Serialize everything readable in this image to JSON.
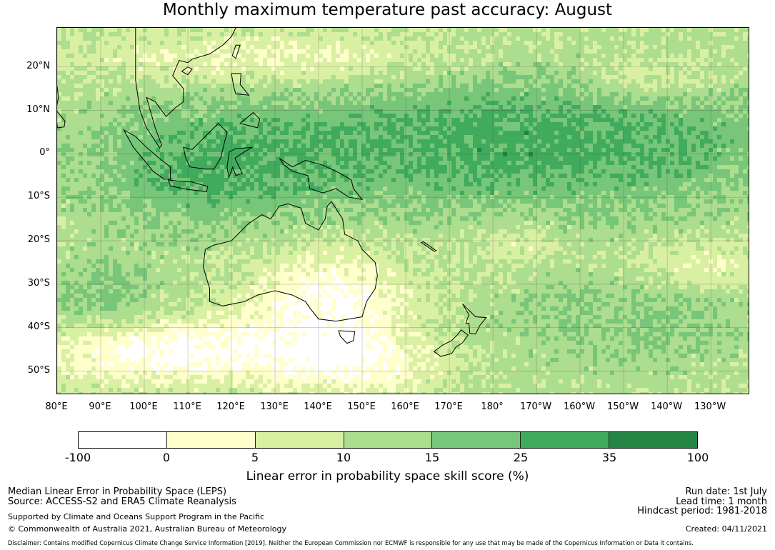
{
  "title": "Monthly maximum temperature past accuracy: August",
  "map": {
    "lat_labels": [
      "20°N",
      "10°N",
      "0°",
      "10°S",
      "20°S",
      "30°S",
      "40°S",
      "50°S"
    ],
    "lon_labels": [
      "80°E",
      "90°E",
      "100°E",
      "110°E",
      "120°E",
      "130°E",
      "140°E",
      "150°E",
      "160°E",
      "170°E",
      "180°",
      "170°W",
      "160°W",
      "150°W",
      "140°W",
      "130°W"
    ],
    "extent": {
      "lon_min": 80,
      "lon_max": 239,
      "lat_min": -55.5,
      "lat_max": 29
    },
    "field": "LEPS skill score (%)"
  },
  "colorbar": {
    "ticks": [
      "-100",
      "0",
      "5",
      "10",
      "15",
      "25",
      "35",
      "100"
    ],
    "colors": [
      "#ffffff",
      "#ffffcc",
      "#d9f0a3",
      "#addd8e",
      "#78c679",
      "#41ab5d",
      "#238443"
    ],
    "label": "Linear error in probability space skill score (%)"
  },
  "info": {
    "method": "Median Linear Error in Probability Space (LEPS)",
    "source": "Source: ACCESS-S2 and ERA5 Climate Reanalysis",
    "support": "Supported by Climate and Oceans Support Program in the Pacific",
    "copyright": "© Commonwealth of Australia 2021, Australian Bureau of Meteorology",
    "run_date": "Run date: 1st July",
    "lead_time": "Lead time: 1 month",
    "hindcast": "Hindcast period: 1981-2018",
    "created": "Created: 04/11/2021",
    "disclaimer": "Disclaimer: Contains modified Copernicus Climate Change Service Information [2019]. Neither the European Commission nor ECMWF is responsible for any use that may be made of the Copernicus Information or Data it contains."
  }
}
